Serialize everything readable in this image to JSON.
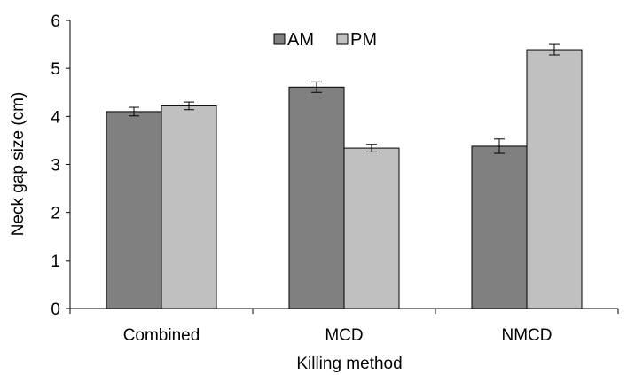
{
  "chart_data": {
    "type": "bar",
    "title": "",
    "xlabel": "Killing method",
    "ylabel": "Neck gap size (cm)",
    "categories": [
      "Combined",
      "MCD",
      "NMCD"
    ],
    "series": [
      {
        "name": "AM",
        "values": [
          4.1,
          4.61,
          3.38
        ],
        "errors": [
          0.09,
          0.11,
          0.15
        ],
        "color": "#808080"
      },
      {
        "name": "PM",
        "values": [
          4.22,
          3.34,
          5.39
        ],
        "errors": [
          0.08,
          0.08,
          0.11
        ],
        "color": "#c0c0c0"
      }
    ],
    "ylim": [
      0,
      6
    ],
    "yticks": [
      0,
      1,
      2,
      3,
      4,
      5,
      6
    ],
    "grid": false,
    "legend_position": "top-center"
  }
}
